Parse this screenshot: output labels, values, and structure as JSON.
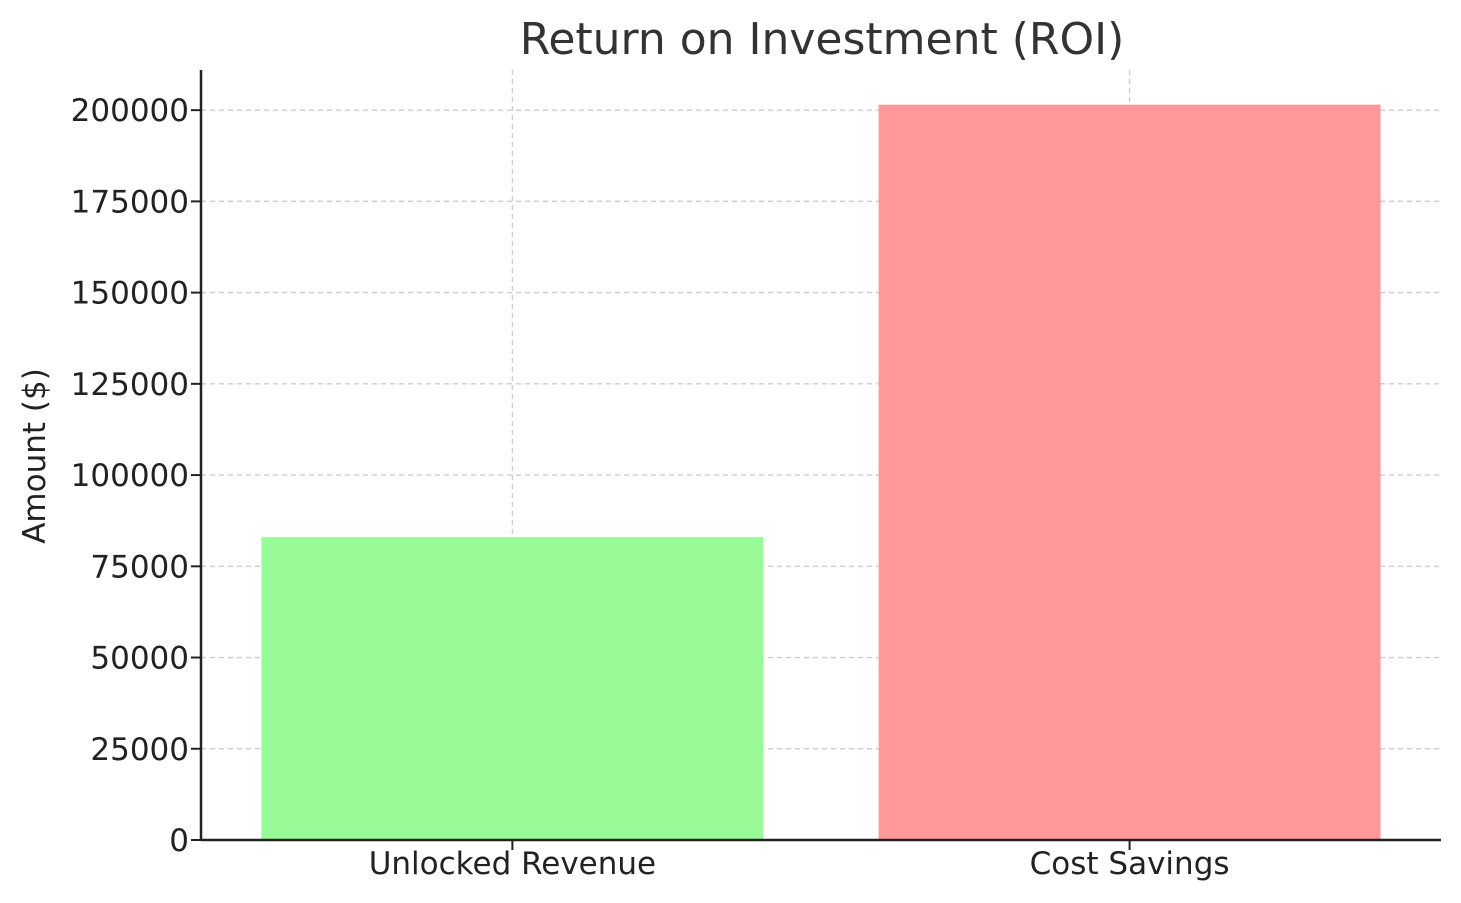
{
  "chart_data": {
    "type": "bar",
    "title": "Return on Investment (ROI)",
    "xlabel": "",
    "ylabel": "Amount ($)",
    "categories": [
      "Unlocked Revenue",
      "Cost Savings"
    ],
    "values": [
      83000,
      201500
    ],
    "colors": [
      "#98fb98",
      "#ff9999"
    ],
    "ylim": [
      0,
      211000
    ],
    "yticks": [
      0,
      25000,
      50000,
      75000,
      100000,
      125000,
      150000,
      175000,
      200000
    ],
    "ytick_labels": [
      "0",
      "25000",
      "50000",
      "75000",
      "100000",
      "125000",
      "150000",
      "175000",
      "200000"
    ],
    "grid": true,
    "grid_color": "#cccccc",
    "axis_color": "#222222",
    "text_color": "#333333"
  }
}
